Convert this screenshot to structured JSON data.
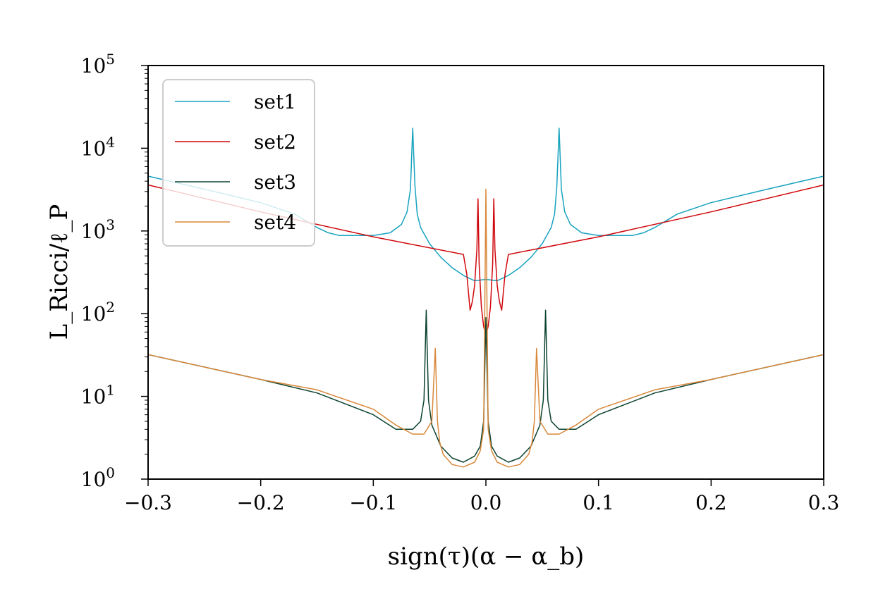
{
  "chart_data": {
    "type": "line",
    "xlabel": "sign(τ)(α − α_b)",
    "ylabel": "L_Ricci/ℓ_P",
    "xlim": [
      -0.3,
      0.3
    ],
    "ylim": [
      1,
      100000
    ],
    "yscale": "log",
    "x_ticks": [
      "−0.3",
      "−0.2",
      "−0.1",
      "0.0",
      "0.1",
      "0.2",
      "0.3"
    ],
    "x_tick_values": [
      -0.3,
      -0.2,
      -0.1,
      0.0,
      0.1,
      0.2,
      0.3
    ],
    "y_ticks": [
      {
        "base": "10",
        "exp": "0"
      },
      {
        "base": "10",
        "exp": "1"
      },
      {
        "base": "10",
        "exp": "2"
      },
      {
        "base": "10",
        "exp": "3"
      },
      {
        "base": "10",
        "exp": "4"
      },
      {
        "base": "10",
        "exp": "5"
      }
    ],
    "y_tick_values": [
      1,
      10,
      100,
      1000,
      10000,
      100000
    ],
    "grid": false,
    "legend_position": "top-left",
    "series": [
      {
        "name": "set1",
        "color": "#17a2bf",
        "x": [
          -0.3,
          -0.25,
          -0.2,
          -0.17,
          -0.15,
          -0.14,
          -0.13,
          -0.1,
          -0.085,
          -0.075,
          -0.07,
          -0.067,
          -0.065,
          -0.063,
          -0.061,
          -0.058,
          -0.05,
          -0.04,
          -0.03,
          -0.02,
          -0.01,
          0.0,
          0.01,
          0.02,
          0.03,
          0.04,
          0.05,
          0.058,
          0.061,
          0.063,
          0.065,
          0.067,
          0.07,
          0.075,
          0.085,
          0.1,
          0.13,
          0.14,
          0.15,
          0.17,
          0.2,
          0.25,
          0.3
        ],
        "y": [
          4600,
          3200,
          2200,
          1600,
          1100,
          950,
          880,
          880,
          950,
          1200,
          1700,
          3200,
          17500,
          3500,
          1600,
          1100,
          700,
          480,
          360,
          290,
          250,
          260,
          250,
          290,
          360,
          480,
          700,
          1100,
          1600,
          3500,
          17500,
          3200,
          1700,
          1200,
          950,
          880,
          880,
          950,
          1100,
          1600,
          2200,
          3200,
          4600
        ]
      },
      {
        "name": "set2",
        "color": "#d0070c",
        "x": [
          -0.3,
          -0.2,
          -0.1,
          -0.02,
          -0.017,
          -0.014,
          -0.012,
          -0.01,
          -0.008,
          -0.007,
          -0.006,
          -0.004,
          -0.002,
          0.0,
          0.002,
          0.004,
          0.006,
          0.007,
          0.008,
          0.01,
          0.012,
          0.014,
          0.017,
          0.02,
          0.1,
          0.2,
          0.3
        ],
        "y": [
          3600,
          1700,
          850,
          520,
          300,
          110,
          140,
          220,
          600,
          2450,
          400,
          120,
          70,
          55,
          70,
          120,
          400,
          2450,
          600,
          220,
          140,
          110,
          300,
          520,
          850,
          1700,
          3600
        ]
      },
      {
        "name": "set3",
        "color": "#0b4230",
        "x": [
          -0.3,
          -0.2,
          -0.15,
          -0.1,
          -0.08,
          -0.065,
          -0.058,
          -0.055,
          -0.053,
          -0.051,
          -0.048,
          -0.04,
          -0.03,
          -0.02,
          -0.01,
          -0.005,
          -0.002,
          0.0,
          0.002,
          0.005,
          0.01,
          0.02,
          0.03,
          0.04,
          0.048,
          0.051,
          0.053,
          0.055,
          0.058,
          0.065,
          0.08,
          0.1,
          0.15,
          0.2,
          0.3
        ],
        "y": [
          32,
          16,
          11,
          6,
          4,
          4,
          5,
          9,
          110,
          9,
          4.5,
          2.5,
          1.8,
          1.6,
          1.9,
          2.5,
          5,
          90,
          5,
          2.5,
          1.9,
          1.6,
          1.8,
          2.5,
          4.5,
          9,
          110,
          9,
          5,
          4,
          4,
          6,
          11,
          16,
          32
        ]
      },
      {
        "name": "set4",
        "color": "#d8883a",
        "x": [
          -0.3,
          -0.2,
          -0.15,
          -0.1,
          -0.08,
          -0.065,
          -0.055,
          -0.048,
          -0.045,
          -0.043,
          -0.041,
          -0.038,
          -0.03,
          -0.02,
          -0.01,
          -0.005,
          -0.002,
          0.0,
          0.002,
          0.005,
          0.01,
          0.02,
          0.03,
          0.038,
          0.041,
          0.043,
          0.045,
          0.048,
          0.055,
          0.065,
          0.08,
          0.1,
          0.15,
          0.2,
          0.3
        ],
        "y": [
          32,
          16,
          12,
          7,
          4.5,
          3.5,
          3.5,
          5,
          38,
          5,
          2.8,
          2.0,
          1.5,
          1.4,
          1.6,
          2.2,
          4,
          3200,
          4,
          2.2,
          1.6,
          1.4,
          1.5,
          2.0,
          2.8,
          5,
          38,
          5,
          3.5,
          3.5,
          4.5,
          7,
          12,
          16,
          32
        ]
      }
    ]
  }
}
